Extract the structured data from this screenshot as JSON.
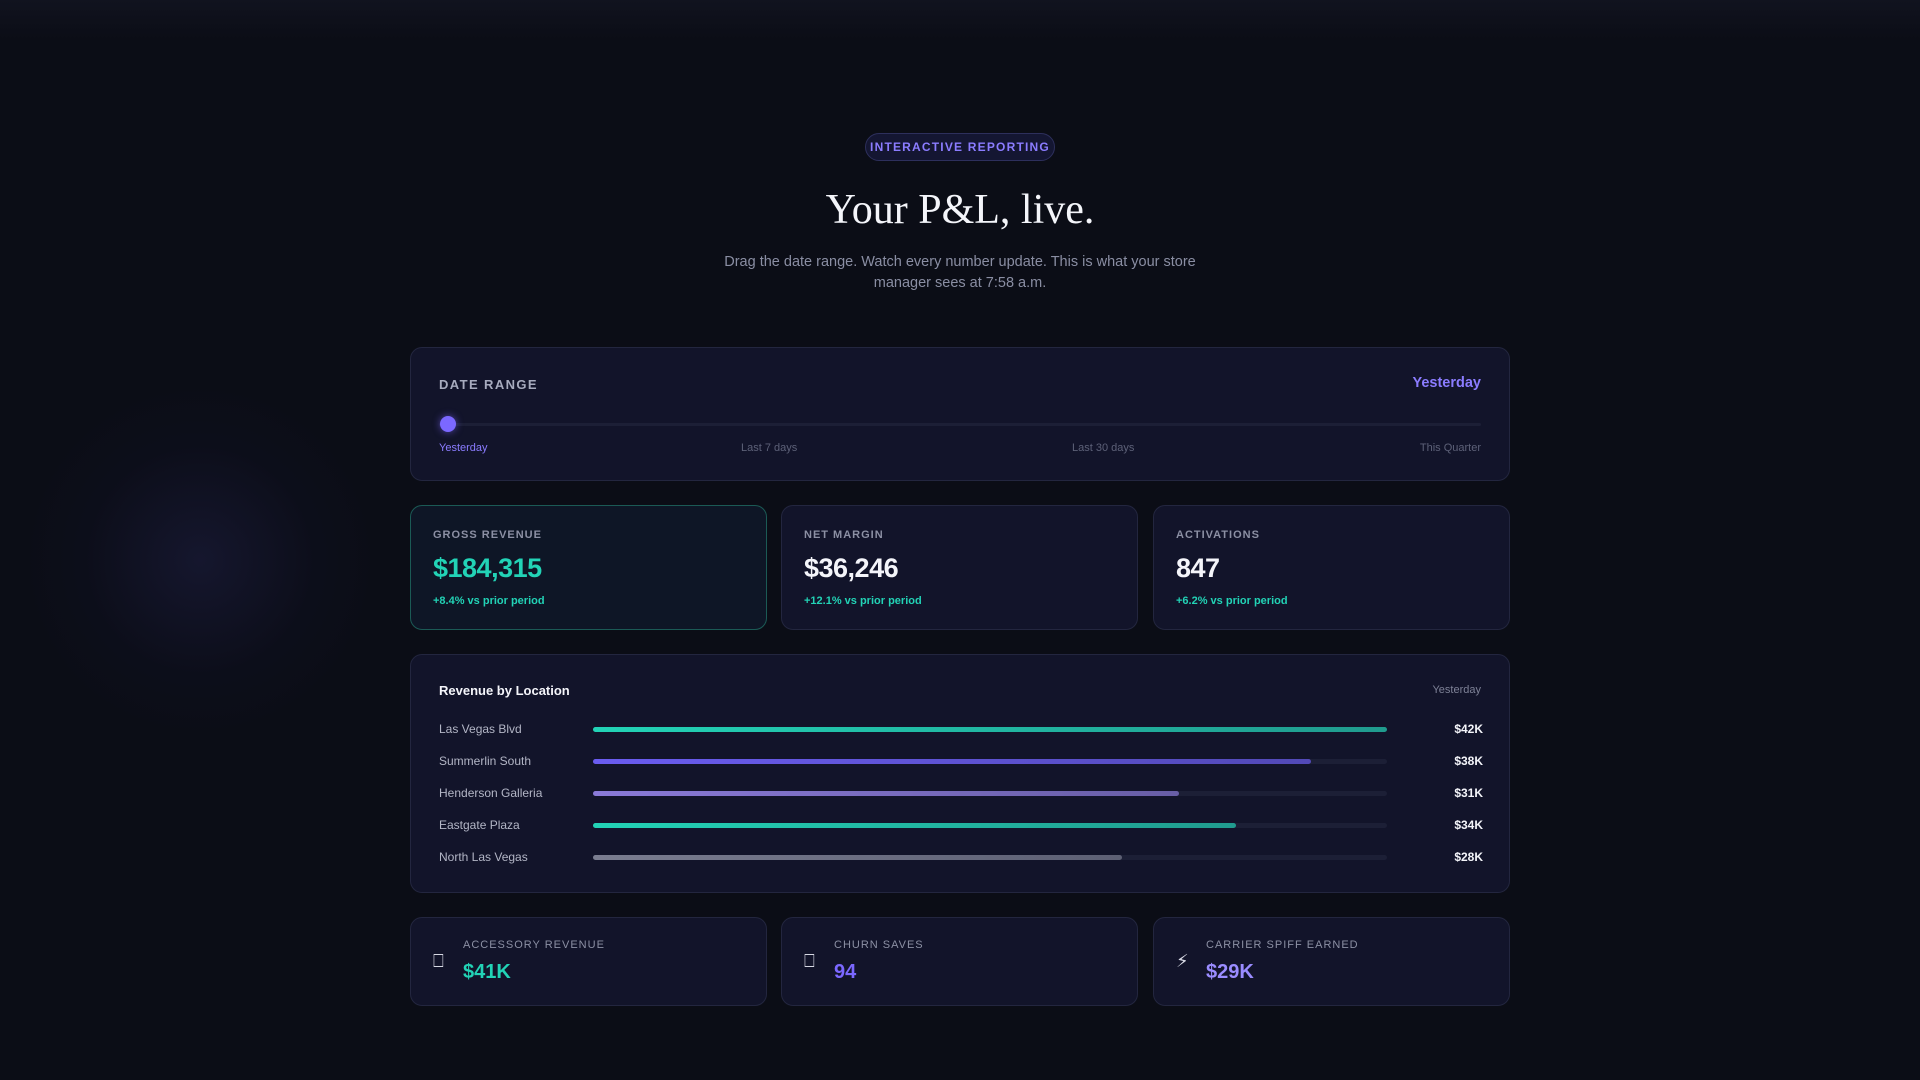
{
  "hero": {
    "badge": "INTERACTIVE REPORTING",
    "title": "Your P&L, live.",
    "subtitle": "Drag the date range. Watch every number update. This is what your store manager sees at 7:58 a.m."
  },
  "date_range": {
    "label": "DATE RANGE",
    "current": "Yesterday",
    "selected_index": 0,
    "ticks": [
      "Yesterday",
      "Last 7 days",
      "Last 30 days",
      "This Quarter"
    ]
  },
  "kpis": [
    {
      "label": "GROSS REVENUE",
      "value": "$184,315",
      "delta": "+8.4% vs prior period"
    },
    {
      "label": "NET MARGIN",
      "value": "$36,246",
      "delta": "+12.1% vs prior period"
    },
    {
      "label": "ACTIVATIONS",
      "value": "847",
      "delta": "+6.2% vs prior period"
    }
  ],
  "locations": {
    "title": "Revenue by Location",
    "period": "Yesterday",
    "max_value": 42,
    "rows": [
      {
        "name": "Las Vegas Blvd",
        "value": 42,
        "label": "$42K",
        "color": "#22d3b6"
      },
      {
        "name": "Summerlin South",
        "value": 38,
        "label": "$38K",
        "color": "#6a5cf0"
      },
      {
        "name": "Henderson Galleria",
        "value": 31,
        "label": "$31K",
        "color": "#8a7ad8"
      },
      {
        "name": "Eastgate Plaza",
        "value": 34,
        "label": "$34K",
        "color": "#22d3b6"
      },
      {
        "name": "North Las Vegas",
        "value": 28,
        "label": "$28K",
        "color": "#7a7d90"
      }
    ]
  },
  "stats": [
    {
      "label": "ACCESSORY REVENUE",
      "value": "$41K",
      "icon": "box-icon",
      "glyph": "⎕",
      "color": "#22d3b6"
    },
    {
      "label": "CHURN SAVES",
      "value": "94",
      "icon": "box-icon",
      "glyph": "⎕",
      "color": "#7b68ff"
    },
    {
      "label": "CARRIER SPIFF EARNED",
      "value": "$29K",
      "icon": "lightning-icon",
      "glyph": "⚡",
      "color": "#9a8cff"
    }
  ]
}
